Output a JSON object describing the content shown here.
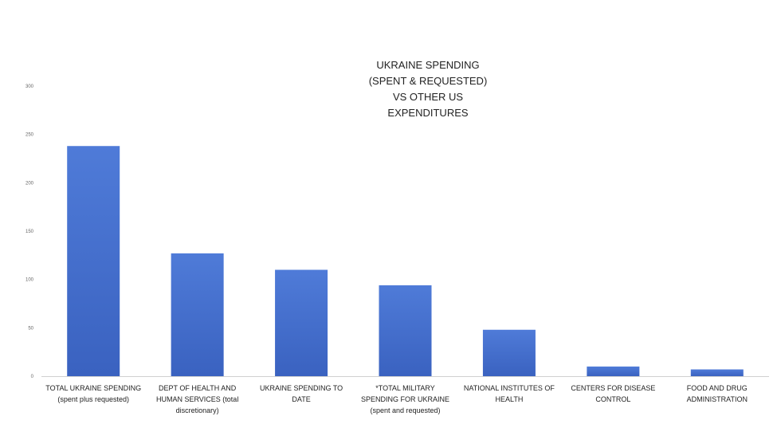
{
  "chart_data": {
    "type": "bar",
    "title_lines": [
      "UKRAINE SPENDING",
      "(SPENT & REQUESTED)",
      "VS OTHER US",
      "EXPENDITURES"
    ],
    "categories": [
      [
        "TOTAL UKRAINE SPENDING",
        "(spent plus requested)"
      ],
      [
        "DEPT OF HEALTH AND",
        "HUMAN SERVICES (total",
        "discretionary)"
      ],
      [
        "UKRAINE SPENDING TO",
        "DATE"
      ],
      [
        "*TOTAL MILITARY",
        "SPENDING FOR UKRAINE",
        "(spent and requested)"
      ],
      [
        "NATIONAL INSTITUTES OF",
        "HEALTH"
      ],
      [
        "CENTERS FOR DISEASE",
        "CONTROL"
      ],
      [
        "FOOD AND DRUG",
        "ADMINISTRATION"
      ]
    ],
    "values": [
      238,
      127,
      110,
      94,
      48,
      10,
      7
    ],
    "ylim": [
      0,
      300
    ],
    "yticks": [
      0,
      50,
      100,
      150,
      200,
      250,
      300
    ],
    "bar_color": "#4169c8",
    "grid": false,
    "legend": "none"
  }
}
